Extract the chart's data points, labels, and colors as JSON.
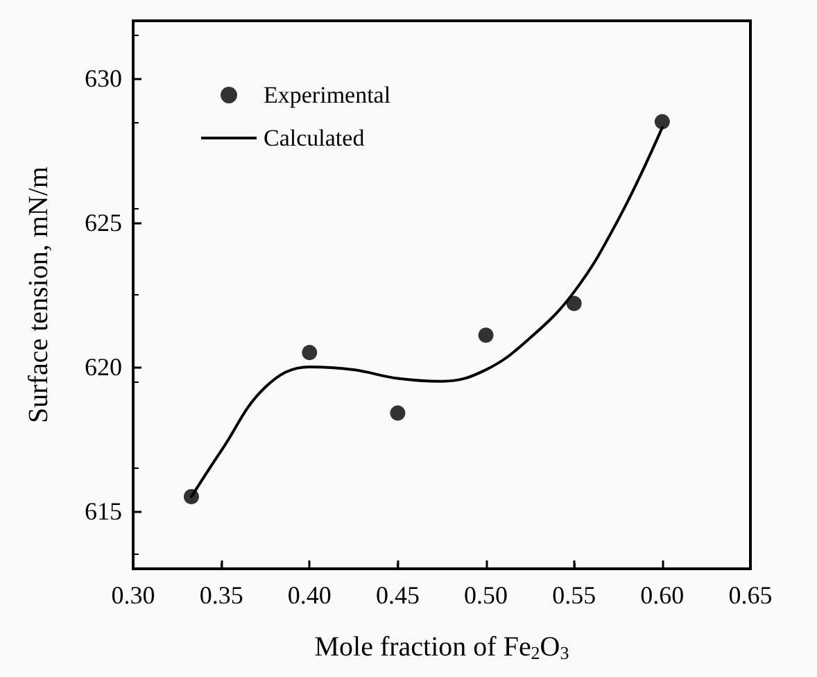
{
  "chart_data": {
    "type": "scatter",
    "xlabel": "Mole fraction of Fe$_{2}$O$_{3}$",
    "ylabel": "Surface tension, mN/m",
    "xlim": [
      0.3,
      0.65
    ],
    "xticks": [
      {
        "value": 0.3,
        "label": "0.30"
      },
      {
        "value": 0.35,
        "label": "0.35"
      },
      {
        "value": 0.4,
        "label": "0.40"
      },
      {
        "value": 0.45,
        "label": "0.45"
      },
      {
        "value": 0.5,
        "label": "0.50"
      },
      {
        "value": 0.55,
        "label": "0.55"
      },
      {
        "value": 0.6,
        "label": "0.60"
      },
      {
        "value": 0.65,
        "label": "0.65"
      }
    ],
    "ylim": [
      613,
      632
    ],
    "yticks": [
      615,
      620,
      625,
      630
    ],
    "grid": false,
    "legend": "top left",
    "series": [
      {
        "name": "Experimental",
        "marker": "circle",
        "color": "#000000",
        "x": [
          0.333,
          0.4,
          0.45,
          0.5,
          0.55,
          0.6
        ],
        "values": [
          615.5,
          620.5,
          618.4,
          621.1,
          622.2,
          628.5
        ]
      },
      {
        "name": "Calculated",
        "type": "line",
        "marker": "none",
        "line_style": "solid",
        "color": "#000000",
        "x": [
          0.333,
          0.35,
          0.375,
          0.4,
          0.425,
          0.45,
          0.475,
          0.5,
          0.525,
          0.55,
          0.575,
          0.6
        ],
        "values": [
          615.5,
          617.1,
          619.3,
          620.0,
          619.9,
          619.6,
          619.5,
          619.9,
          621.0,
          622.6,
          625.1,
          628.3
        ]
      }
    ]
  }
}
